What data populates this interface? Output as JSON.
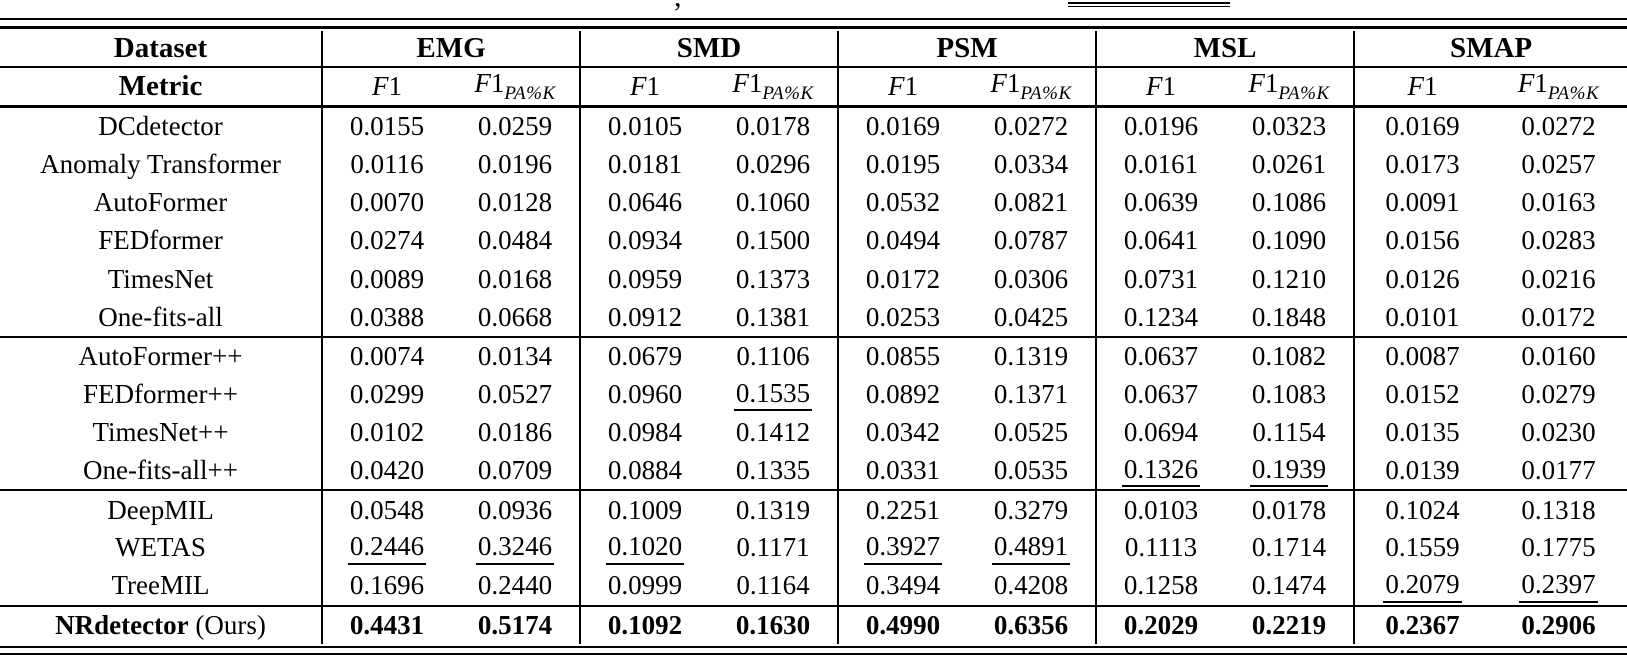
{
  "caption_fragment": {
    "comma": ","
  },
  "table": {
    "header": {
      "dataset": "Dataset",
      "metric": "Metric",
      "groups": [
        "EMG",
        "SMD",
        "PSM",
        "MSL",
        "SMAP"
      ],
      "f1_letter": "F",
      "f1_digit": "1",
      "f1_sub": "PA%K"
    },
    "groups": [
      {
        "name": "unsupervised-baselines",
        "rows": [
          {
            "label": "DCdetector",
            "values": [
              "0.0155",
              "0.0259",
              "0.0105",
              "0.0178",
              "0.0169",
              "0.0272",
              "0.0196",
              "0.0323",
              "0.0169",
              "0.0272"
            ],
            "underline": [],
            "bold": false
          },
          {
            "label": "Anomaly Transformer",
            "values": [
              "0.0116",
              "0.0196",
              "0.0181",
              "0.0296",
              "0.0195",
              "0.0334",
              "0.0161",
              "0.0261",
              "0.0173",
              "0.0257"
            ],
            "underline": [],
            "bold": false
          },
          {
            "label": "AutoFormer",
            "values": [
              "0.0070",
              "0.0128",
              "0.0646",
              "0.1060",
              "0.0532",
              "0.0821",
              "0.0639",
              "0.1086",
              "0.0091",
              "0.0163"
            ],
            "underline": [],
            "bold": false
          },
          {
            "label": "FEDformer",
            "values": [
              "0.0274",
              "0.0484",
              "0.0934",
              "0.1500",
              "0.0494",
              "0.0787",
              "0.0641",
              "0.1090",
              "0.0156",
              "0.0283"
            ],
            "underline": [],
            "bold": false
          },
          {
            "label": "TimesNet",
            "values": [
              "0.0089",
              "0.0168",
              "0.0959",
              "0.1373",
              "0.0172",
              "0.0306",
              "0.0731",
              "0.1210",
              "0.0126",
              "0.0216"
            ],
            "underline": [],
            "bold": false
          },
          {
            "label": "One-fits-all",
            "values": [
              "0.0388",
              "0.0668",
              "0.0912",
              "0.1381",
              "0.0253",
              "0.0425",
              "0.1234",
              "0.1848",
              "0.0101",
              "0.0172"
            ],
            "underline": [],
            "bold": false
          }
        ]
      },
      {
        "name": "plus-plus-variants",
        "rows": [
          {
            "label": "AutoFormer++",
            "values": [
              "0.0074",
              "0.0134",
              "0.0679",
              "0.1106",
              "0.0855",
              "0.1319",
              "0.0637",
              "0.1082",
              "0.0087",
              "0.0160"
            ],
            "underline": [],
            "bold": false
          },
          {
            "label": "FEDformer++",
            "values": [
              "0.0299",
              "0.0527",
              "0.0960",
              "0.1535",
              "0.0892",
              "0.1371",
              "0.0637",
              "0.1083",
              "0.0152",
              "0.0279"
            ],
            "underline": [
              3
            ],
            "bold": false
          },
          {
            "label": "TimesNet++",
            "values": [
              "0.0102",
              "0.0186",
              "0.0984",
              "0.1412",
              "0.0342",
              "0.0525",
              "0.0694",
              "0.1154",
              "0.0135",
              "0.0230"
            ],
            "underline": [],
            "bold": false
          },
          {
            "label": "One-fits-all++",
            "values": [
              "0.0420",
              "0.0709",
              "0.0884",
              "0.1335",
              "0.0331",
              "0.0535",
              "0.1326",
              "0.1939",
              "0.0139",
              "0.0177"
            ],
            "underline": [
              6,
              7
            ],
            "bold": false
          }
        ]
      },
      {
        "name": "weakly-supervised-baselines",
        "rows": [
          {
            "label": "DeepMIL",
            "values": [
              "0.0548",
              "0.0936",
              "0.1009",
              "0.1319",
              "0.2251",
              "0.3279",
              "0.0103",
              "0.0178",
              "0.1024",
              "0.1318"
            ],
            "underline": [],
            "bold": false
          },
          {
            "label": "WETAS",
            "values": [
              "0.2446",
              "0.3246",
              "0.1020",
              "0.1171",
              "0.3927",
              "0.4891",
              "0.1113",
              "0.1714",
              "0.1559",
              "0.1775"
            ],
            "underline": [
              0,
              1,
              2,
              4,
              5
            ],
            "bold": false
          },
          {
            "label": "TreeMIL",
            "values": [
              "0.1696",
              "0.2440",
              "0.0999",
              "0.1164",
              "0.3494",
              "0.4208",
              "0.1258",
              "0.1474",
              "0.2079",
              "0.2397"
            ],
            "underline": [
              8,
              9
            ],
            "bold": false
          }
        ]
      },
      {
        "name": "ours",
        "rows": [
          {
            "label": "NRdetector",
            "label_suffix": " (Ours)",
            "values": [
              "0.4431",
              "0.5174",
              "0.1092",
              "0.1630",
              "0.4990",
              "0.6356",
              "0.2029",
              "0.2219",
              "0.2367",
              "0.2906"
            ],
            "underline": [],
            "bold": true
          }
        ]
      }
    ]
  }
}
